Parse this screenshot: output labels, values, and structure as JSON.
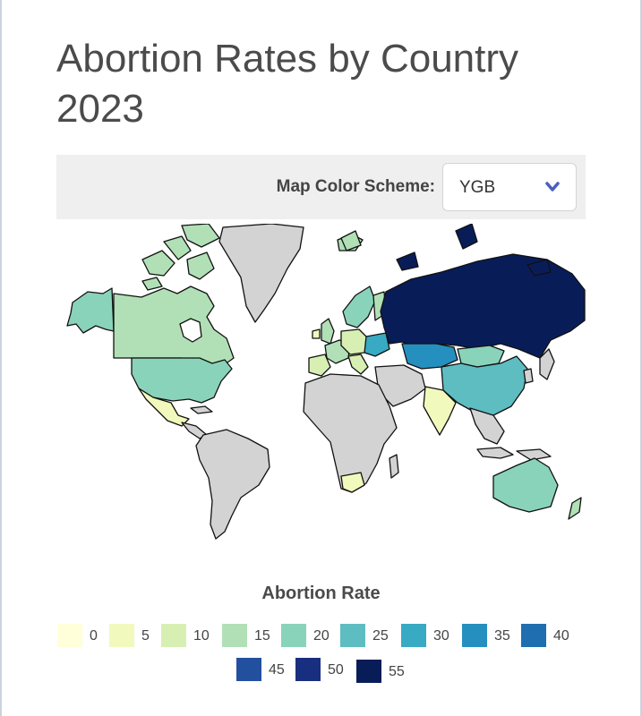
{
  "page": {
    "title": "Abortion Rates by Country 2023"
  },
  "controls": {
    "color_scheme_label": "Map Color Scheme:",
    "color_scheme_value": "YGB"
  },
  "legend": {
    "title": "Abortion Rate",
    "items": [
      {
        "label": "0",
        "color": "#ffffd9"
      },
      {
        "label": "5",
        "color": "#f1f9bd"
      },
      {
        "label": "10",
        "color": "#d8efb3"
      },
      {
        "label": "15",
        "color": "#b1e0b6"
      },
      {
        "label": "20",
        "color": "#89d3bb"
      },
      {
        "label": "25",
        "color": "#5ebdc1"
      },
      {
        "label": "30",
        "color": "#38aac3"
      },
      {
        "label": "35",
        "color": "#2590bf"
      },
      {
        "label": "40",
        "color": "#1f6fb0"
      },
      {
        "label": "45",
        "color": "#234f9f"
      },
      {
        "label": "50",
        "color": "#182f80"
      },
      {
        "label": "55",
        "color": "#081d58"
      }
    ]
  },
  "colors": {
    "no_data": "#d3d3d3",
    "accent": "#4a5fc1"
  }
}
